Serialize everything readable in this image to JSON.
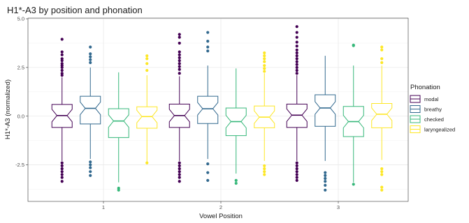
{
  "chart_data": {
    "type": "boxplot",
    "title": "H1*-A3 by position and phonation",
    "xlabel": "Vowel Position",
    "ylabel": "H1*-A3 (normalized)",
    "categories": [
      "1",
      "2",
      "3"
    ],
    "ylim": [
      -4.2,
      5.0
    ],
    "yticks": [
      -2.5,
      0.0,
      2.5,
      5.0
    ],
    "ytick_labels": [
      "-2.5",
      "0.0",
      "2.5",
      "5.0"
    ],
    "grid": true,
    "legend": {
      "title": "Phonation",
      "position": "right"
    },
    "series": [
      {
        "name": "modal",
        "color": "#440154",
        "boxes": [
          {
            "min": -2.3,
            "q1": -0.58,
            "median": 0.03,
            "q3": 0.6,
            "max": 2.0,
            "outliers": [
              3.95,
              3.3,
              3.15,
              2.95,
              2.85,
              2.7,
              2.6,
              2.5,
              2.35,
              2.2,
              2.1,
              -2.4,
              -2.55,
              -2.7,
              -2.85,
              -3.0,
              -3.15,
              -3.35
            ]
          },
          {
            "min": -2.3,
            "q1": -0.58,
            "median": 0.03,
            "q3": 0.62,
            "max": 2.05,
            "outliers": [
              4.2,
              4.05,
              3.75,
              3.3,
              3.15,
              3.0,
              2.85,
              2.7,
              2.55,
              2.4,
              2.2,
              -2.4,
              -2.55,
              -2.7,
              -2.85,
              -3.0,
              -3.15,
              -3.35
            ]
          },
          {
            "min": -2.3,
            "q1": -0.58,
            "median": 0.05,
            "q3": 0.62,
            "max": 2.1,
            "outliers": [
              4.6,
              4.3,
              4.05,
              3.8,
              3.6,
              3.4,
              3.25,
              3.1,
              2.95,
              2.8,
              2.65,
              2.5,
              2.35,
              2.2,
              -2.4,
              -2.55,
              -2.7,
              -2.85,
              -3.0,
              -3.15,
              -3.3
            ]
          }
        ]
      },
      {
        "name": "breathy",
        "color": "#31688e",
        "boxes": [
          {
            "min": -2.2,
            "q1": -0.4,
            "median": 0.4,
            "q3": 1.02,
            "max": 2.5,
            "outliers": [
              3.55,
              3.2,
              3.05,
              2.9,
              2.75,
              -2.35,
              -2.5,
              -2.65,
              -2.85,
              -3.05
            ]
          },
          {
            "min": -2.2,
            "q1": -0.38,
            "median": 0.38,
            "q3": 1.02,
            "max": 2.6,
            "outliers": [
              4.3,
              3.85,
              3.55,
              3.35,
              -2.45,
              -2.9,
              -3.3
            ]
          },
          {
            "min": -2.3,
            "q1": -0.52,
            "median": 0.42,
            "q3": 1.1,
            "max": 3.1,
            "outliers": [
              -2.9,
              -3.05,
              -3.2,
              -3.35,
              -3.55,
              -3.8
            ]
          }
        ]
      },
      {
        "name": "checked",
        "color": "#35b779",
        "boxes": [
          {
            "min": -3.4,
            "q1": -1.1,
            "median": -0.25,
            "q3": 0.38,
            "max": 2.25,
            "outliers": [
              -3.7,
              -3.8
            ]
          },
          {
            "min": -2.95,
            "q1": -1.0,
            "median": -0.28,
            "q3": 0.42,
            "max": 2.45,
            "outliers": [
              -3.3,
              -3.45
            ]
          },
          {
            "min": -3.4,
            "q1": -1.05,
            "median": -0.28,
            "q3": 0.5,
            "max": 2.6,
            "outliers": [
              3.65,
              3.62,
              -3.5
            ]
          }
        ]
      },
      {
        "name": "laryngealized",
        "color": "#fde725",
        "boxes": [
          {
            "min": -2.35,
            "q1": -0.62,
            "median": -0.02,
            "q3": 0.48,
            "max": 2.1,
            "outliers": [
              3.1,
              2.95,
              2.7,
              2.35,
              -2.4
            ]
          },
          {
            "min": -2.3,
            "q1": -0.6,
            "median": -0.05,
            "q3": 0.52,
            "max": 2.2,
            "outliers": [
              3.25,
              3.1,
              2.95,
              2.8,
              2.6,
              2.45,
              2.3,
              -2.55,
              -2.7,
              -2.85,
              -3.0
            ]
          },
          {
            "min": -2.25,
            "q1": -0.6,
            "median": 0.1,
            "q3": 0.65,
            "max": 2.6,
            "outliers": [
              3.55,
              3.4,
              2.95,
              2.75,
              -2.7,
              -2.85,
              -3.0,
              -3.65,
              -3.8
            ]
          }
        ]
      }
    ]
  }
}
